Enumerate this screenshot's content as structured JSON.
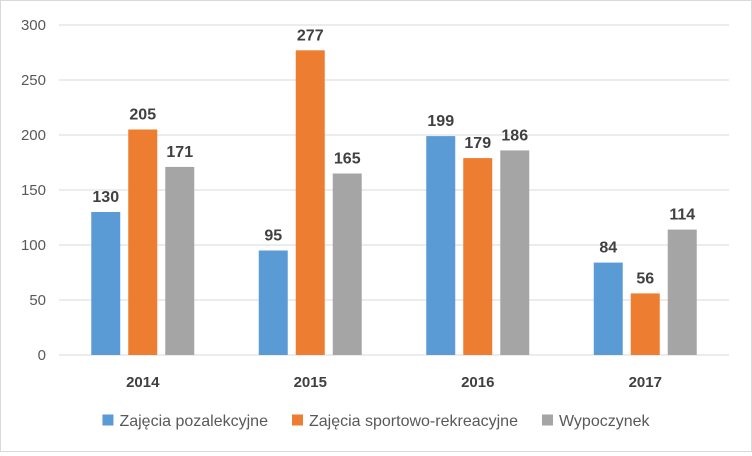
{
  "chart_data": {
    "type": "bar",
    "title": "",
    "xlabel": "",
    "ylabel": "",
    "categories": [
      "2014",
      "2015",
      "2016",
      "2017"
    ],
    "series": [
      {
        "name": "Zajęcia pozalekcyjne",
        "color": "#5B9BD5",
        "values": [
          130,
          95,
          199,
          84
        ]
      },
      {
        "name": "Zajęcia sportowo-rekreacyjne",
        "color": "#ED7D31",
        "values": [
          205,
          277,
          179,
          56
        ]
      },
      {
        "name": "Wypoczynek",
        "color": "#A5A5A5",
        "values": [
          171,
          165,
          186,
          114
        ]
      }
    ],
    "ylim": [
      0,
      300
    ],
    "yticks": [
      0,
      50,
      100,
      150,
      200,
      250,
      300
    ],
    "grid": true,
    "data_labels": true,
    "legend_position": "bottom"
  }
}
